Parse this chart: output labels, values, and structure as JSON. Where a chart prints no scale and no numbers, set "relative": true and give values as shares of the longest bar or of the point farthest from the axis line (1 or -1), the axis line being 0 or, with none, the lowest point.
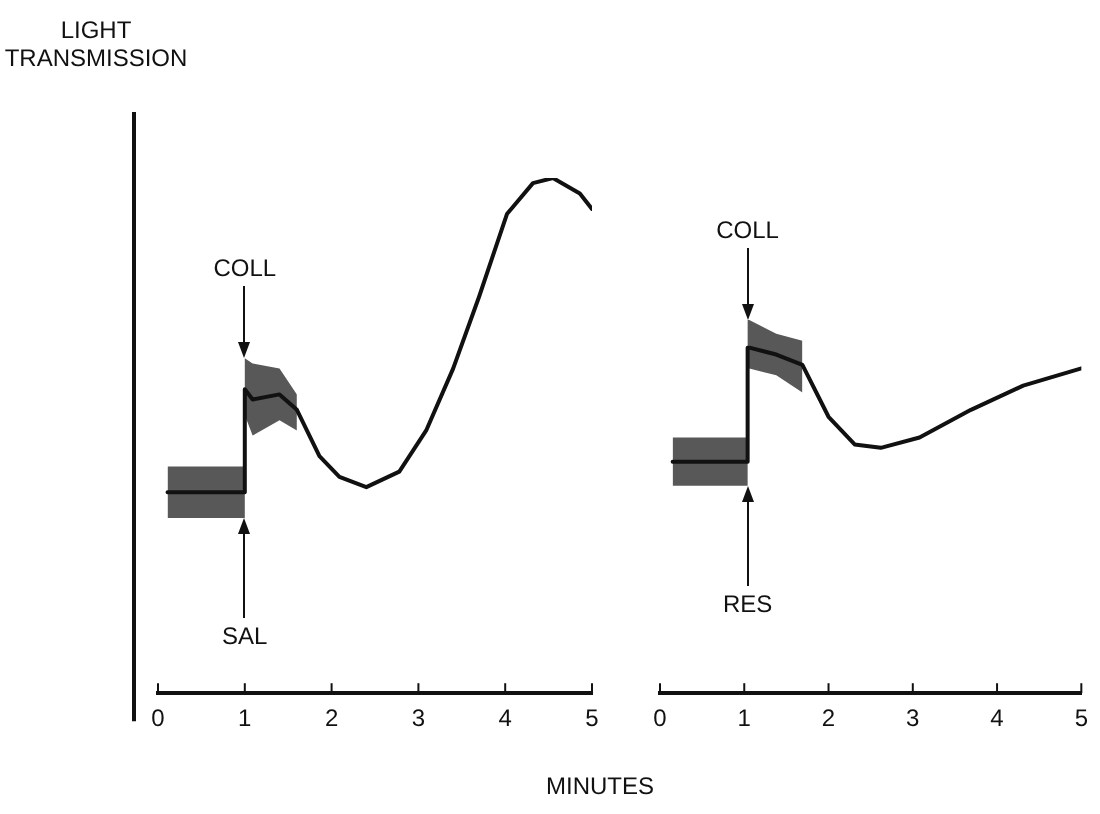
{
  "chart_data": [
    {
      "type": "line",
      "relative": true,
      "ylabel": "LIGHT TRANSMISSION",
      "xlabel": "MINUTES",
      "xlim": [
        0,
        5
      ],
      "xticks": [
        0,
        1,
        2,
        3,
        4,
        5
      ],
      "legend": false,
      "marker": "none",
      "line_style": "solid",
      "annotations": [
        "COLL",
        "SAL"
      ],
      "series": [
        {
          "color": "#111111",
          "x": [
            0.11,
            1.0,
            1.0,
            1.09,
            1.4,
            1.6,
            1.86,
            2.09,
            2.4,
            2.78,
            3.09,
            3.4,
            3.7,
            4.02,
            4.32,
            4.55,
            4.86,
            5.0
          ],
          "values": [
            0.39,
            0.39,
            0.59,
            0.57,
            0.58,
            0.55,
            0.46,
            0.42,
            0.4,
            0.43,
            0.51,
            0.63,
            0.77,
            0.93,
            0.99,
            1,
            0.97,
            0.94
          ],
          "lower": [
            0.34,
            0.34,
            0.54,
            0.5,
            0.53,
            0.51,
            null,
            null,
            null,
            null,
            null,
            null,
            null,
            null,
            null,
            null,
            null,
            null
          ],
          "upper": [
            0.44,
            0.44,
            0.65,
            0.64,
            0.63,
            0.58,
            null,
            null,
            null,
            null,
            null,
            null,
            null,
            null,
            null,
            null,
            null,
            null
          ]
        }
      ]
    },
    {
      "type": "line",
      "relative": true,
      "xlim": [
        0,
        5
      ],
      "xticks": [
        0,
        1,
        2,
        3,
        4,
        5
      ],
      "legend": false,
      "marker": "none",
      "line_style": "solid",
      "annotations": [
        "COLL",
        "RES"
      ],
      "series": [
        {
          "color": "#111111",
          "x": [
            0.15,
            1.04,
            1.04,
            1.06,
            1.38,
            1.69,
            2.0,
            2.31,
            2.62,
            3.08,
            3.69,
            4.31,
            5.0
          ],
          "values": [
            0.67,
            0.67,
            1,
            1,
            0.98,
            0.95,
            0.8,
            0.72,
            0.71,
            0.74,
            0.82,
            0.89,
            0.94
          ],
          "lower": [
            0.6,
            0.6,
            0.94,
            0.94,
            0.92,
            0.87,
            null,
            null,
            null,
            null,
            null,
            null,
            null
          ],
          "upper": [
            0.74,
            0.74,
            1.08,
            1.08,
            1.04,
            1.02,
            null,
            null,
            null,
            null,
            null,
            null,
            null
          ]
        }
      ]
    }
  ]
}
